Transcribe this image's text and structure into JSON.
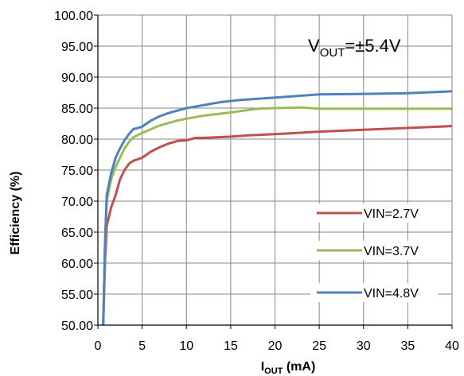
{
  "chart_data": {
    "type": "line",
    "title": "",
    "annotation": {
      "prefix": "V",
      "subscript": "OUT",
      "suffix": "=±5.4V"
    },
    "xlabel": {
      "main": "I",
      "subscript": "OUT",
      "suffix": " (mA)"
    },
    "ylabel": "Efficiency (%)",
    "xlim": [
      0,
      40
    ],
    "ylim": [
      50,
      100
    ],
    "x_ticks": [
      0,
      5,
      10,
      15,
      20,
      25,
      30,
      35,
      40
    ],
    "y_ticks": [
      "50.00",
      "55.00",
      "60.00",
      "65.00",
      "70.00",
      "75.00",
      "80.00",
      "85.00",
      "90.00",
      "95.00",
      "100.00"
    ],
    "grid": true,
    "legend_position": "bottom-right",
    "series": [
      {
        "name": "VIN=2.7V",
        "color": "#c0504d",
        "points": [
          [
            0.6,
            50
          ],
          [
            0.8,
            60
          ],
          [
            1.0,
            66
          ],
          [
            1.5,
            69
          ],
          [
            2.0,
            71
          ],
          [
            2.5,
            73.5
          ],
          [
            3.0,
            75
          ],
          [
            3.5,
            76
          ],
          [
            4.0,
            76.5
          ],
          [
            5.0,
            77
          ],
          [
            6.0,
            78
          ],
          [
            7.0,
            78.7
          ],
          [
            8.0,
            79.3
          ],
          [
            9.0,
            79.7
          ],
          [
            10.0,
            79.8
          ],
          [
            11.0,
            80.2
          ],
          [
            12.0,
            80.2
          ],
          [
            15.0,
            80.4
          ],
          [
            17.0,
            80.6
          ],
          [
            20.0,
            80.8
          ],
          [
            25.0,
            81.2
          ],
          [
            30.0,
            81.5
          ],
          [
            35.0,
            81.8
          ],
          [
            40.0,
            82.1
          ]
        ]
      },
      {
        "name": "VIN=3.7V",
        "color": "#9bbb59",
        "points": [
          [
            0.6,
            50
          ],
          [
            0.8,
            62
          ],
          [
            1.0,
            70
          ],
          [
            1.5,
            73.5
          ],
          [
            2.0,
            75.5
          ],
          [
            2.5,
            77
          ],
          [
            3.0,
            78.5
          ],
          [
            3.5,
            79.5
          ],
          [
            4.0,
            80.3
          ],
          [
            5.0,
            81
          ],
          [
            6.0,
            81.6
          ],
          [
            7.0,
            82.2
          ],
          [
            8.0,
            82.6
          ],
          [
            9.0,
            83
          ],
          [
            10.0,
            83.3
          ],
          [
            12.0,
            83.8
          ],
          [
            15.0,
            84.3
          ],
          [
            18.0,
            84.9
          ],
          [
            20.0,
            85
          ],
          [
            23.0,
            85.1
          ],
          [
            25.0,
            84.9
          ],
          [
            30.0,
            84.9
          ],
          [
            35.0,
            84.9
          ],
          [
            40.0,
            84.9
          ]
        ]
      },
      {
        "name": "VIN=4.8V",
        "color": "#4f81bd",
        "points": [
          [
            0.6,
            50
          ],
          [
            0.8,
            63
          ],
          [
            1.0,
            71
          ],
          [
            1.5,
            74.5
          ],
          [
            2.0,
            77
          ],
          [
            2.5,
            78.5
          ],
          [
            3.0,
            79.8
          ],
          [
            3.5,
            80.8
          ],
          [
            4.0,
            81.6
          ],
          [
            5.0,
            82
          ],
          [
            6.0,
            83
          ],
          [
            7.0,
            83.7
          ],
          [
            8.0,
            84.2
          ],
          [
            9.0,
            84.6
          ],
          [
            10.0,
            85
          ],
          [
            12.0,
            85.5
          ],
          [
            14.0,
            86
          ],
          [
            16.0,
            86.3
          ],
          [
            20.0,
            86.7
          ],
          [
            25.0,
            87.2
          ],
          [
            30.0,
            87.3
          ],
          [
            35.0,
            87.4
          ],
          [
            40.0,
            87.7
          ]
        ]
      }
    ]
  }
}
